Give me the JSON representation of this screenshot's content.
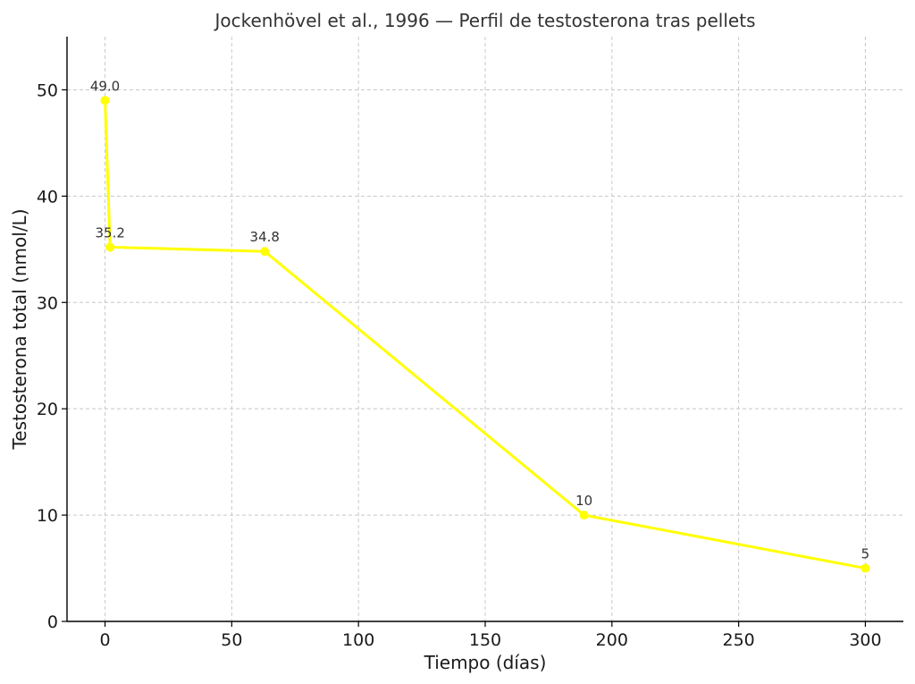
{
  "chart_data": {
    "type": "line",
    "title": "Jockenhövel et al., 1996 — Perfil de testosterona tras pellets",
    "xlabel": "Tiempo (días)",
    "ylabel": "Testosterona total (nmol/L)",
    "xlim": [
      -15,
      315
    ],
    "ylim": [
      0,
      55
    ],
    "x_ticks": [
      0,
      50,
      100,
      150,
      200,
      250,
      300
    ],
    "y_ticks": [
      0,
      10,
      20,
      30,
      40,
      50
    ],
    "grid": true,
    "series": [
      {
        "color": "#ffff00",
        "points": [
          {
            "x": 0,
            "y": 49.0,
            "label": "49.0"
          },
          {
            "x": 2,
            "y": 35.2,
            "label": "35.2"
          },
          {
            "x": 63,
            "y": 34.8,
            "label": "34.8"
          },
          {
            "x": 189,
            "y": 10,
            "label": "10"
          },
          {
            "x": 300,
            "y": 5,
            "label": "5"
          }
        ]
      }
    ]
  }
}
